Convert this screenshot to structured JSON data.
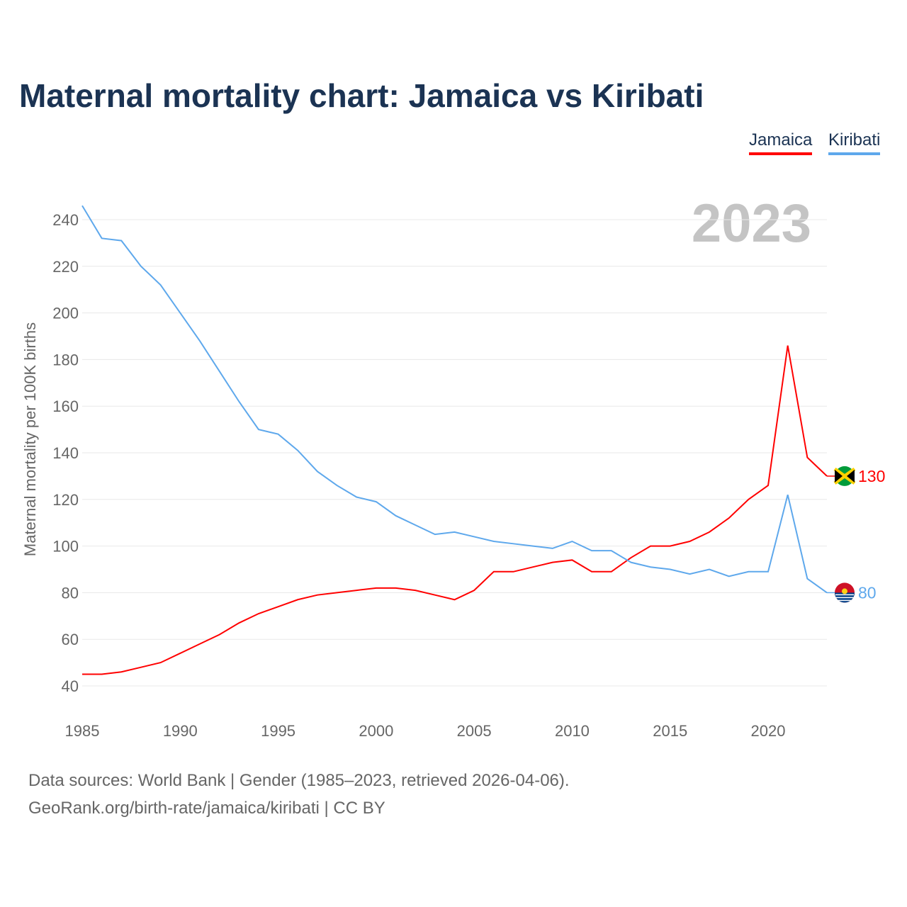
{
  "title": "Maternal mortality chart: Jamaica vs Kiribati",
  "legend": [
    {
      "name": "Jamaica",
      "color": "#ff0000"
    },
    {
      "name": "Kiribati",
      "color": "#5ea8ec"
    }
  ],
  "year_label": "2023",
  "sources": [
    "Data sources: World Bank | Gender (1985–2023, retrieved 2026-04-06).",
    "GeoRank.org/birth-rate/jamaica/kiribati | CC BY"
  ],
  "chart_data": {
    "type": "line",
    "title": "Maternal mortality chart: Jamaica vs Kiribati",
    "ylabel": "Maternal mortality per 100K births",
    "xlabel": "",
    "ylim": [
      40,
      240
    ],
    "xlim": [
      1985,
      2023
    ],
    "yticks": [
      "40",
      "60",
      "80",
      "100",
      "120",
      "140",
      "160",
      "180",
      "200",
      "220",
      "240"
    ],
    "xticks": [
      "1985",
      "1990",
      "1995",
      "2000",
      "2005",
      "2010",
      "2015",
      "2020"
    ],
    "x": [
      1985,
      1986,
      1987,
      1988,
      1989,
      1990,
      1991,
      1992,
      1993,
      1994,
      1995,
      1996,
      1997,
      1998,
      1999,
      2000,
      2001,
      2002,
      2003,
      2004,
      2005,
      2006,
      2007,
      2008,
      2009,
      2010,
      2011,
      2012,
      2013,
      2014,
      2015,
      2016,
      2017,
      2018,
      2019,
      2020,
      2021,
      2022,
      2023
    ],
    "series": [
      {
        "name": "Jamaica",
        "color": "#ff0000",
        "end_label": "130",
        "values": [
          45,
          45,
          46,
          48,
          50,
          54,
          58,
          62,
          67,
          71,
          74,
          77,
          79,
          80,
          81,
          82,
          82,
          81,
          79,
          77,
          81,
          89,
          89,
          91,
          93,
          94,
          89,
          89,
          95,
          100,
          100,
          102,
          106,
          112,
          120,
          126,
          186,
          138,
          130
        ]
      },
      {
        "name": "Kiribati",
        "color": "#5ea8ec",
        "end_label": "80",
        "values": [
          246,
          232,
          231,
          220,
          212,
          200,
          188,
          175,
          162,
          150,
          148,
          141,
          132,
          126,
          121,
          119,
          113,
          109,
          105,
          106,
          104,
          102,
          101,
          100,
          99,
          102,
          98,
          98,
          93,
          91,
          90,
          88,
          90,
          87,
          89,
          89,
          122,
          86,
          80
        ]
      }
    ]
  }
}
